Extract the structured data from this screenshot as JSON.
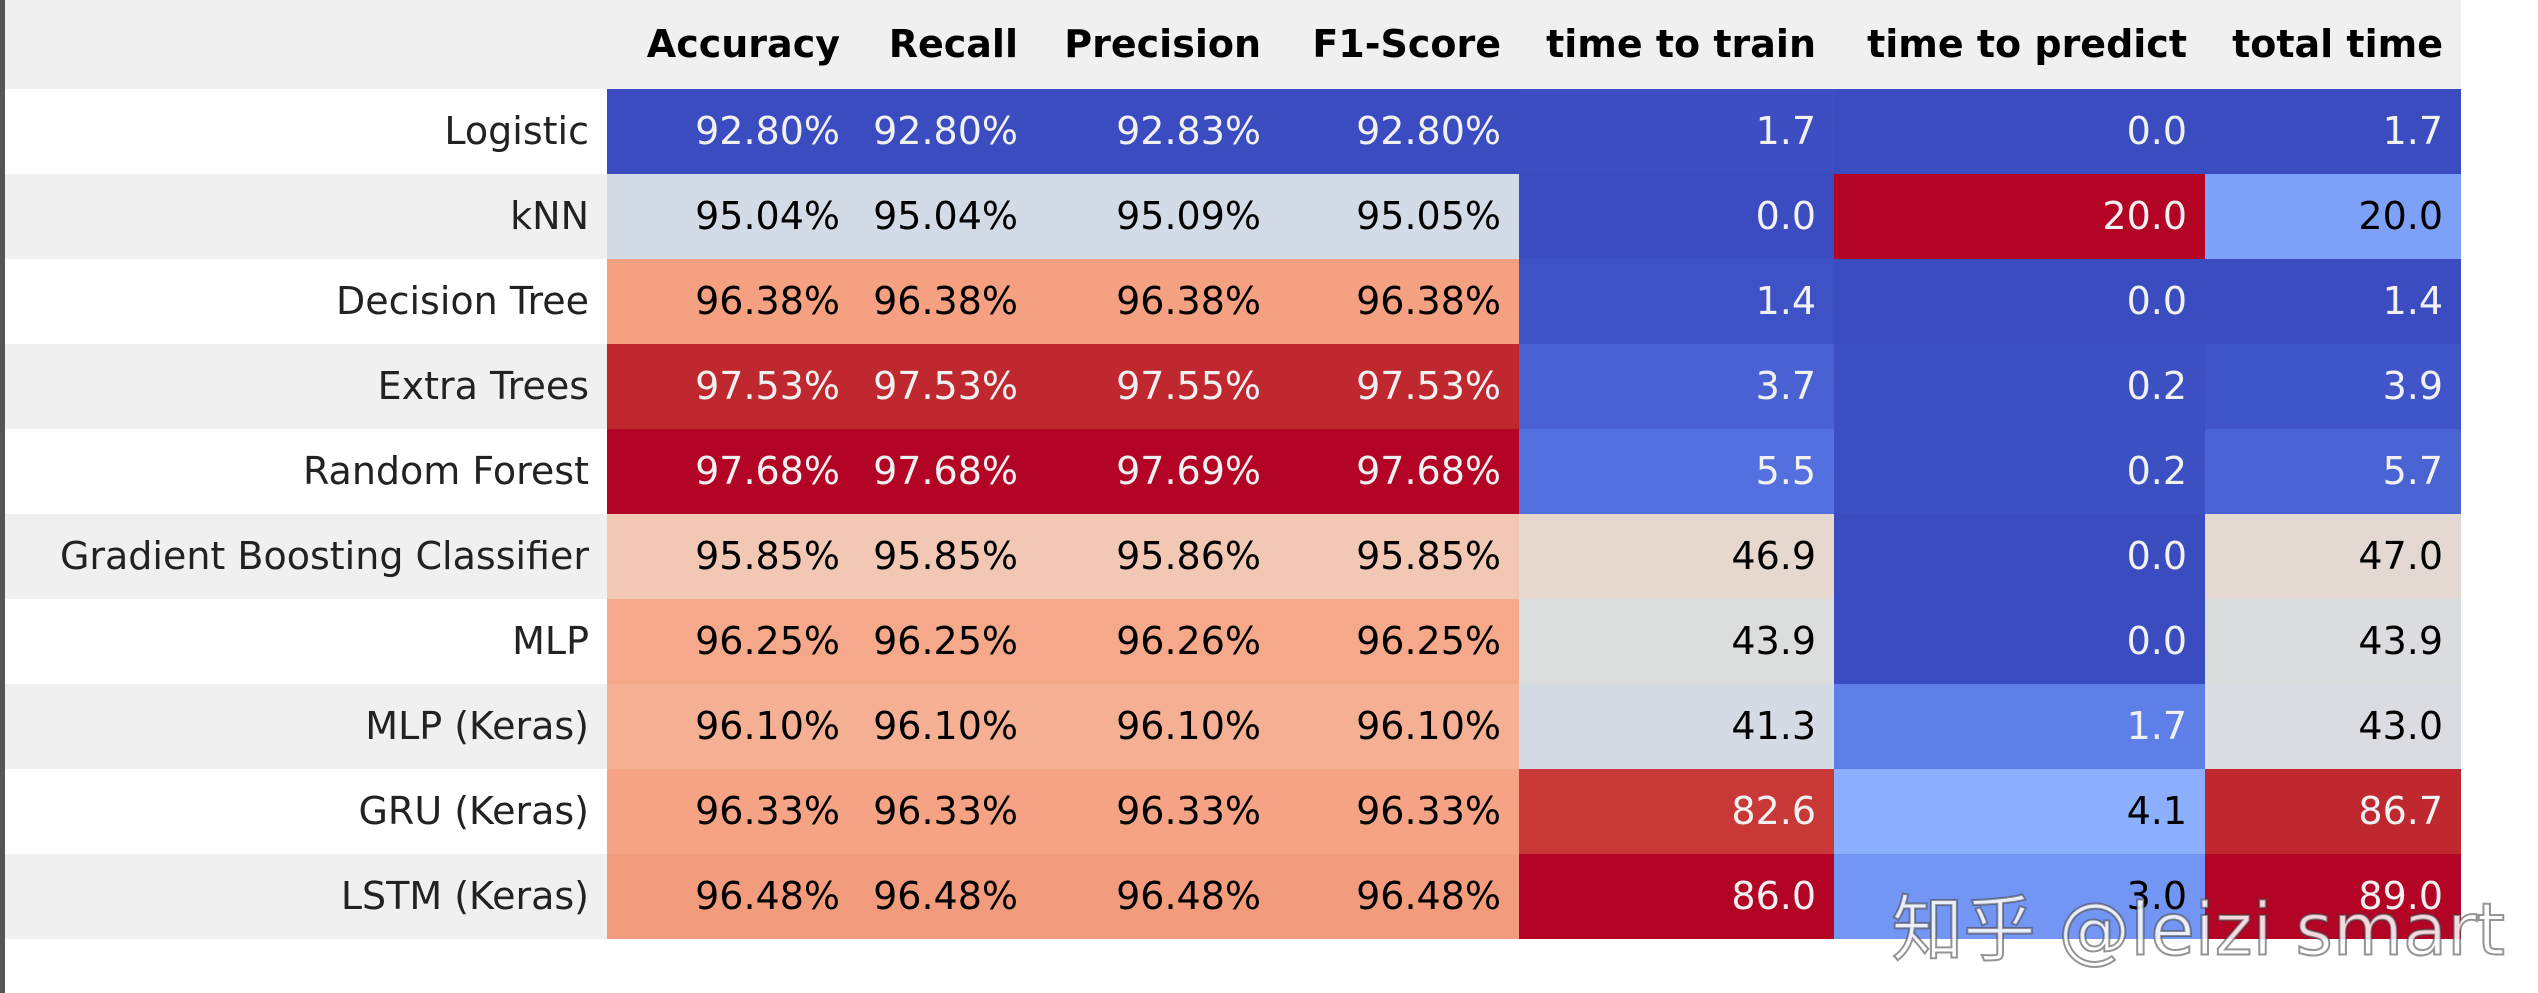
{
  "table": {
    "columns": [
      "Accuracy",
      "Recall",
      "Precision",
      "F1-Score",
      "time to train",
      "time to predict",
      "total time"
    ],
    "rows": [
      {
        "label": "Logistic",
        "cells": [
          "92.80%",
          "92.80%",
          "92.83%",
          "92.80%",
          "1.7",
          "0.0",
          "1.7"
        ],
        "colors": [
          "#3b4cc0",
          "#3b4cc0",
          "#3b4cc0",
          "#3b4cc0",
          "#3c4ec2",
          "#3b4cc0",
          "#3b4cc0"
        ]
      },
      {
        "label": "kNN",
        "cells": [
          "95.04%",
          "95.04%",
          "95.09%",
          "95.05%",
          "0.0",
          "20.0",
          "20.0"
        ],
        "colors": [
          "#d3dbe7",
          "#d3dbe7",
          "#d3dbe7",
          "#d3dbe7",
          "#3b4cc0",
          "#b40426",
          "#7da0f9"
        ]
      },
      {
        "label": "Decision Tree",
        "cells": [
          "96.38%",
          "96.38%",
          "96.38%",
          "96.38%",
          "1.4",
          "0.0",
          "1.4"
        ],
        "colors": [
          "#f5a081",
          "#f5a081",
          "#f5a081",
          "#f5a081",
          "#3e51c5",
          "#3b4cc0",
          "#3b4cc0"
        ]
      },
      {
        "label": "Extra Trees",
        "cells": [
          "97.53%",
          "97.53%",
          "97.55%",
          "97.53%",
          "3.7",
          "0.2",
          "3.9"
        ],
        "colors": [
          "#c0282f",
          "#c0282f",
          "#c0282f",
          "#c0282f",
          "#4961d2",
          "#3d50c3",
          "#4055c8"
        ]
      },
      {
        "label": "Random Forest",
        "cells": [
          "97.68%",
          "97.68%",
          "97.69%",
          "97.68%",
          "5.5",
          "0.2",
          "5.7"
        ],
        "colors": [
          "#b40426",
          "#b40426",
          "#b40426",
          "#b40426",
          "#5470de",
          "#3d50c3",
          "#4a63d3"
        ]
      },
      {
        "label": "Gradient Boosting Classifier",
        "cells": [
          "95.85%",
          "95.85%",
          "95.86%",
          "95.85%",
          "46.9",
          "0.0",
          "47.0"
        ],
        "colors": [
          "#f2c8b4",
          "#f2c8b4",
          "#f2c8b4",
          "#f2c8b4",
          "#e6d7cf",
          "#3b4cc0",
          "#e4d9d2"
        ]
      },
      {
        "label": "MLP",
        "cells": [
          "96.25%",
          "96.25%",
          "96.26%",
          "96.25%",
          "43.9",
          "0.0",
          "43.9"
        ],
        "colors": [
          "#f6a98a",
          "#f6a98a",
          "#f6a98a",
          "#f6a98a",
          "#dcdddd",
          "#3b4cc0",
          "#dbdcde"
        ]
      },
      {
        "label": "MLP (Keras)",
        "cells": [
          "96.10%",
          "96.10%",
          "96.10%",
          "96.10%",
          "41.3",
          "1.7",
          "43.0"
        ],
        "colors": [
          "#f5b094",
          "#f5b094",
          "#f5b094",
          "#f5b094",
          "#d5dbe5",
          "#5f7fe8",
          "#d9dce1"
        ]
      },
      {
        "label": "GRU (Keras)",
        "cells": [
          "96.33%",
          "96.33%",
          "96.33%",
          "96.33%",
          "82.6",
          "4.1",
          "86.7"
        ],
        "colors": [
          "#f5a384",
          "#f5a384",
          "#f5a384",
          "#f5a384",
          "#c83836",
          "#8db0fe",
          "#c0282f"
        ]
      },
      {
        "label": "LSTM (Keras)",
        "cells": [
          "96.48%",
          "96.48%",
          "96.48%",
          "96.48%",
          "86.0",
          "3.0",
          "89.0"
        ],
        "colors": [
          "#f39b7d",
          "#f39b7d",
          "#f39b7d",
          "#f39b7d",
          "#b40426",
          "#7396f5",
          "#b40426"
        ]
      }
    ]
  },
  "watermark": "知乎 @leizi smart"
}
